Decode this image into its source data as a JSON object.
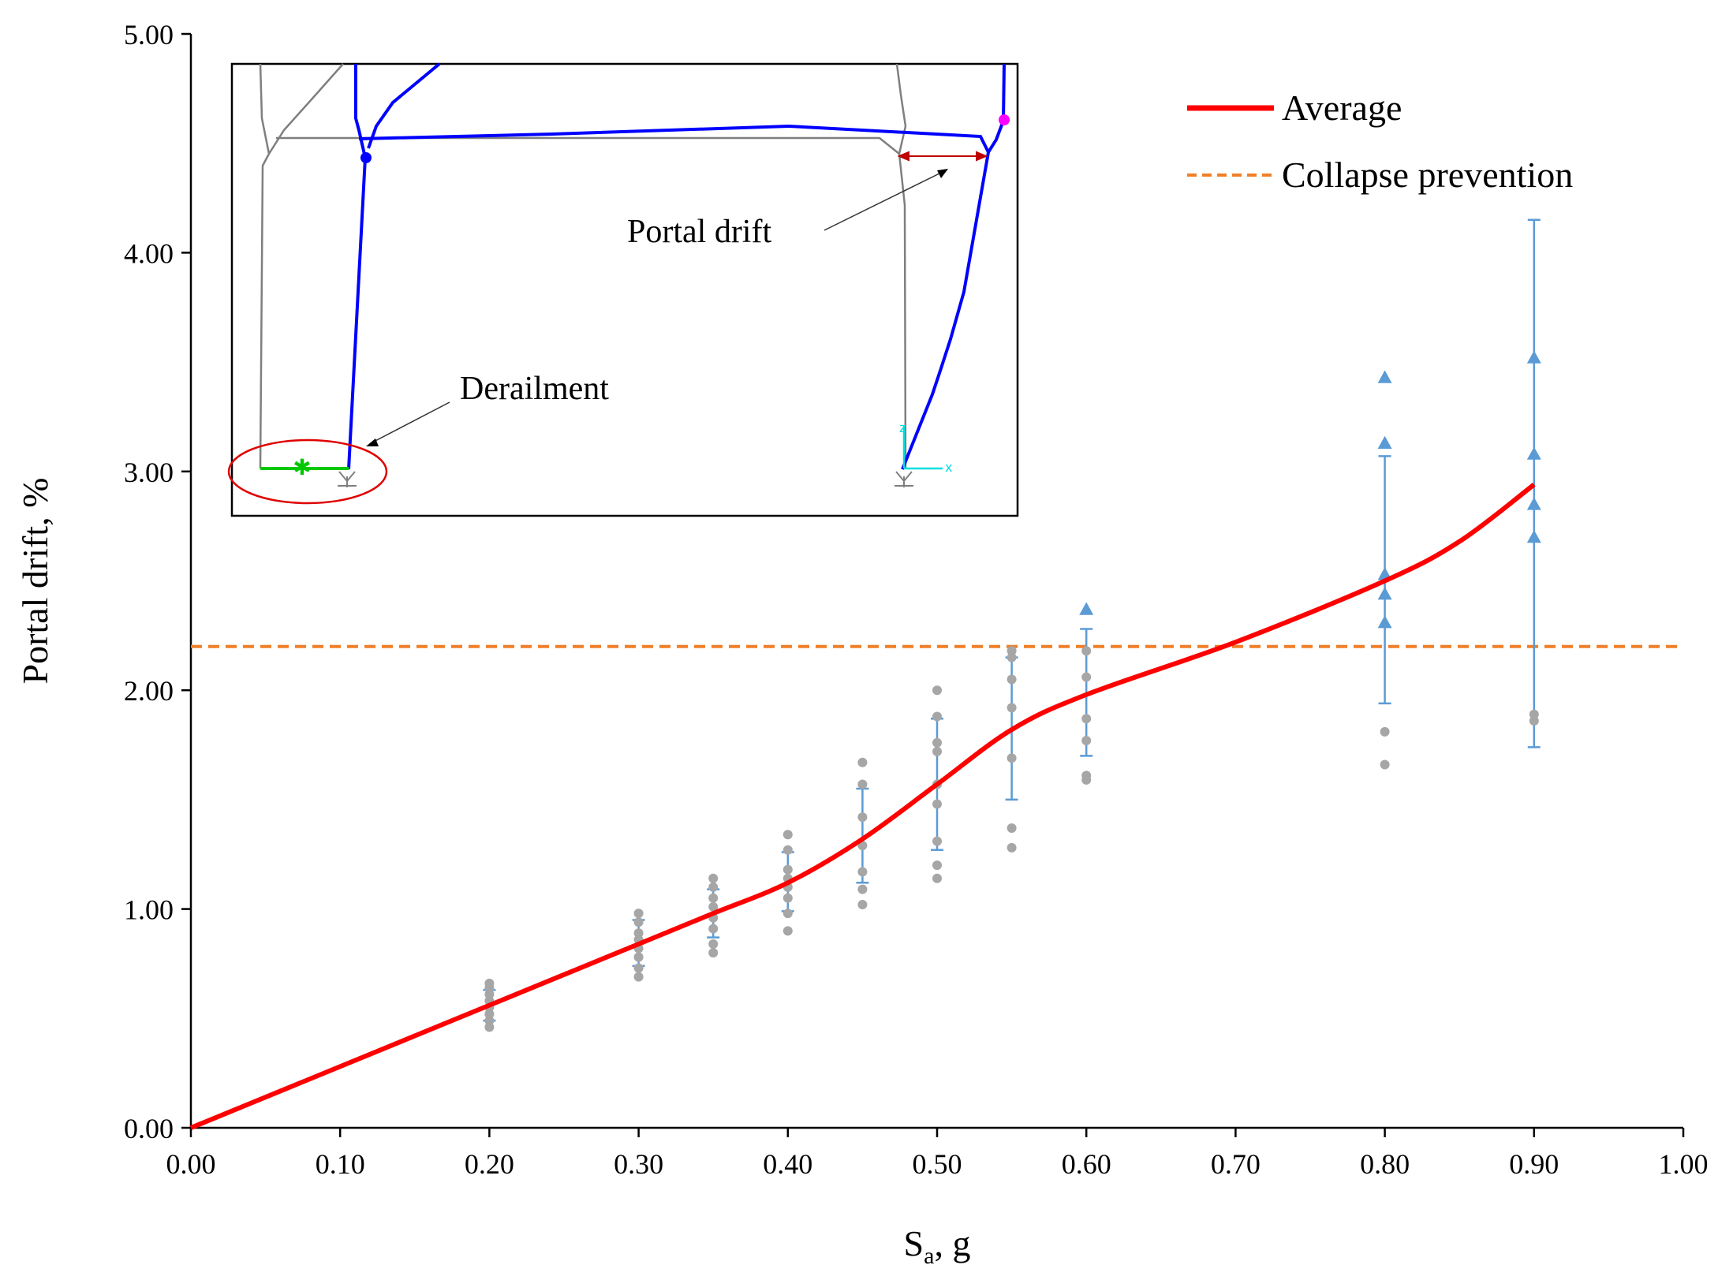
{
  "chart_data": {
    "type": "line",
    "title": "",
    "xlabel": "S",
    "xlabel_subscript": "a",
    "xlabel_suffix": ", g",
    "ylabel": "Portal drift, %",
    "xlim": [
      0,
      1
    ],
    "ylim": [
      0,
      5
    ],
    "x_ticks": [
      "0.00",
      "0.10",
      "0.20",
      "0.30",
      "0.40",
      "0.50",
      "0.60",
      "0.70",
      "0.80",
      "0.90",
      "1.00"
    ],
    "y_ticks": [
      "0.00",
      "1.00",
      "2.00",
      "3.00",
      "4.00",
      "5.00"
    ],
    "grid": false,
    "legend_position": "top-right",
    "series": [
      {
        "name": "Average",
        "style": "solid",
        "color": "#ff0000",
        "x": [
          0,
          0.2,
          0.3,
          0.35,
          0.4,
          0.45,
          0.5,
          0.55,
          0.6,
          0.7,
          0.8,
          0.85,
          0.9
        ],
        "y": [
          0,
          0.56,
          0.84,
          0.98,
          1.12,
          1.32,
          1.57,
          1.82,
          1.98,
          2.22,
          2.5,
          2.68,
          2.94
        ]
      },
      {
        "name": "Collapse prevention",
        "style": "dashed",
        "color": "#f07f27",
        "x": [
          0,
          1
        ],
        "y": [
          2.2,
          2.2
        ]
      }
    ],
    "error_bars": [
      {
        "x": 0.2,
        "low": 0.49,
        "high": 0.63
      },
      {
        "x": 0.3,
        "low": 0.74,
        "high": 0.95
      },
      {
        "x": 0.35,
        "low": 0.87,
        "high": 1.09
      },
      {
        "x": 0.4,
        "low": 0.99,
        "high": 1.26
      },
      {
        "x": 0.45,
        "low": 1.12,
        "high": 1.55
      },
      {
        "x": 0.5,
        "low": 1.27,
        "high": 1.87
      },
      {
        "x": 0.55,
        "low": 1.5,
        "high": 2.15
      },
      {
        "x": 0.6,
        "low": 1.7,
        "high": 2.28
      },
      {
        "x": 0.8,
        "low": 1.94,
        "high": 3.07
      },
      {
        "x": 0.9,
        "low": 1.74,
        "high": 4.15
      }
    ],
    "records": [
      {
        "x": 0.2,
        "y": [
          0.46,
          0.49,
          0.52,
          0.55,
          0.58,
          0.61,
          0.64,
          0.66
        ]
      },
      {
        "x": 0.3,
        "y": [
          0.69,
          0.73,
          0.78,
          0.82,
          0.86,
          0.89,
          0.94,
          0.98
        ]
      },
      {
        "x": 0.35,
        "y": [
          0.8,
          0.84,
          0.91,
          0.96,
          1.01,
          1.05,
          1.1,
          1.14
        ]
      },
      {
        "x": 0.4,
        "y": [
          0.9,
          0.98,
          1.05,
          1.1,
          1.14,
          1.18,
          1.27,
          1.34
        ]
      },
      {
        "x": 0.45,
        "y": [
          1.02,
          1.09,
          1.17,
          1.29,
          1.42,
          1.57,
          1.67
        ]
      },
      {
        "x": 0.5,
        "y": [
          1.14,
          1.2,
          1.31,
          1.48,
          1.57,
          1.72,
          1.76,
          1.88,
          2.0
        ]
      },
      {
        "x": 0.55,
        "y": [
          1.28,
          1.37,
          1.69,
          1.92,
          2.05,
          2.15,
          2.18
        ]
      },
      {
        "x": 0.6,
        "y": [
          1.59,
          1.61,
          1.77,
          1.87,
          2.06,
          2.18
        ]
      },
      {
        "x": 0.8,
        "y": [
          1.66,
          1.81
        ]
      },
      {
        "x": 0.9,
        "y": [
          1.86,
          1.89
        ]
      }
    ],
    "exceeding_records": [
      {
        "x": 0.6,
        "y": [
          2.37
        ]
      },
      {
        "x": 0.8,
        "y": [
          2.31,
          2.44,
          2.53,
          3.13,
          3.43
        ]
      },
      {
        "x": 0.9,
        "y": [
          2.7,
          2.85,
          3.08,
          3.52
        ]
      }
    ],
    "annotations": {
      "portal_drift": "Portal drift",
      "derailment": "Derailment"
    },
    "inset_axis_labels": {
      "z": "z",
      "x": "x"
    }
  }
}
